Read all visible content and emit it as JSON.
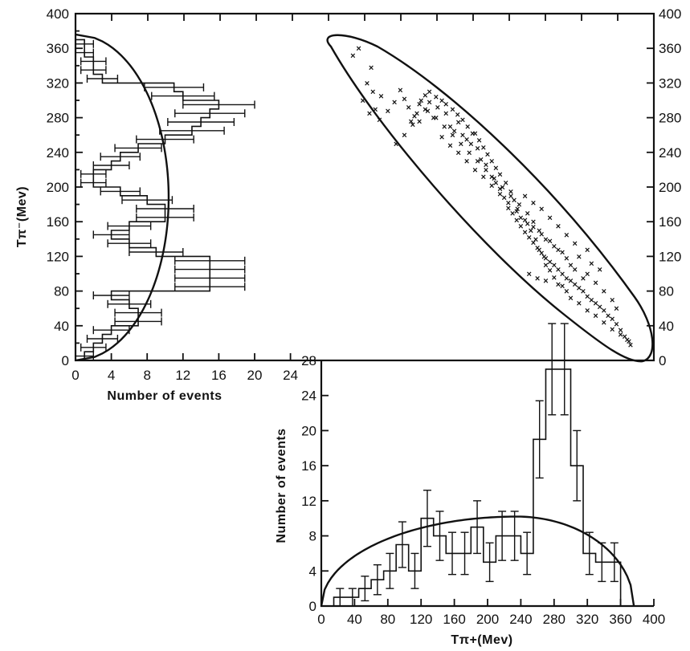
{
  "chart_data": [
    {
      "panel": "scatter",
      "type": "scatter",
      "ylabel": "Tπ⁻(Mev)",
      "xlim": [
        0,
        400
      ],
      "ylim": [
        0,
        400
      ],
      "y_ticks": [
        "0",
        "40",
        "80",
        "120",
        "160",
        "200",
        "240",
        "280",
        "320",
        "360",
        "400"
      ],
      "marker": "x",
      "points": [
        [
          45,
          360
        ],
        [
          38,
          352
        ],
        [
          60,
          338
        ],
        [
          55,
          320
        ],
        [
          62,
          310
        ],
        [
          72,
          305
        ],
        [
          50,
          300
        ],
        [
          65,
          290
        ],
        [
          58,
          285
        ],
        [
          70,
          278
        ],
        [
          80,
          288
        ],
        [
          88,
          298
        ],
        [
          95,
          312
        ],
        [
          100,
          302
        ],
        [
          105,
          292
        ],
        [
          115,
          285
        ],
        [
          110,
          272
        ],
        [
          120,
          300
        ],
        [
          125,
          290
        ],
        [
          130,
          310
        ],
        [
          135,
          280
        ],
        [
          140,
          292
        ],
        [
          150,
          285
        ],
        [
          155,
          270
        ],
        [
          160,
          265
        ],
        [
          165,
          275
        ],
        [
          170,
          260
        ],
        [
          175,
          255
        ],
        [
          180,
          250
        ],
        [
          185,
          262
        ],
        [
          188,
          245
        ],
        [
          192,
          232
        ],
        [
          198,
          226
        ],
        [
          205,
          212
        ],
        [
          210,
          205
        ],
        [
          215,
          198
        ],
        [
          220,
          188
        ],
        [
          225,
          176
        ],
        [
          230,
          170
        ],
        [
          235,
          162
        ],
        [
          240,
          155
        ],
        [
          245,
          148
        ],
        [
          250,
          142
        ],
        [
          255,
          136
        ],
        [
          260,
          130
        ],
        [
          265,
          124
        ],
        [
          270,
          118
        ],
        [
          275,
          114
        ],
        [
          280,
          110
        ],
        [
          285,
          105
        ],
        [
          290,
          100
        ],
        [
          295,
          95
        ],
        [
          300,
          92
        ],
        [
          305,
          88
        ],
        [
          310,
          84
        ],
        [
          315,
          80
        ],
        [
          320,
          74
        ],
        [
          325,
          70
        ],
        [
          330,
          66
        ],
        [
          335,
          62
        ],
        [
          340,
          58
        ],
        [
          345,
          52
        ],
        [
          350,
          48
        ],
        [
          355,
          42
        ],
        [
          360,
          35
        ],
        [
          365,
          28
        ],
        [
          370,
          22
        ],
        [
          372,
          18
        ],
        [
          368,
          24
        ],
        [
          360,
          30
        ],
        [
          350,
          36
        ],
        [
          340,
          44
        ],
        [
          330,
          52
        ],
        [
          320,
          58
        ],
        [
          310,
          66
        ],
        [
          300,
          72
        ],
        [
          295,
          80
        ],
        [
          290,
          86
        ],
        [
          280,
          96
        ],
        [
          275,
          104
        ],
        [
          270,
          110
        ],
        [
          268,
          120
        ],
        [
          262,
          128
        ],
        [
          258,
          140
        ],
        [
          252,
          150
        ],
        [
          248,
          158
        ],
        [
          240,
          165
        ],
        [
          236,
          175
        ],
        [
          232,
          185
        ],
        [
          228,
          195
        ],
        [
          222,
          205
        ],
        [
          215,
          215
        ],
        [
          210,
          222
        ],
        [
          205,
          230
        ],
        [
          200,
          238
        ],
        [
          195,
          246
        ],
        [
          190,
          254
        ],
        [
          182,
          262
        ],
        [
          176,
          270
        ],
        [
          170,
          278
        ],
        [
          164,
          284
        ],
        [
          158,
          290
        ],
        [
          150,
          296
        ],
        [
          145,
          300
        ],
        [
          138,
          304
        ],
        [
          130,
          298
        ],
        [
          125,
          306
        ],
        [
          118,
          296
        ],
        [
          112,
          282
        ],
        [
          108,
          276
        ],
        [
          250,
          100
        ],
        [
          260,
          95
        ],
        [
          270,
          92
        ],
        [
          285,
          88
        ],
        [
          300,
          110
        ],
        [
          310,
          120
        ],
        [
          320,
          128
        ],
        [
          305,
          135
        ],
        [
          295,
          145
        ],
        [
          285,
          155
        ],
        [
          275,
          165
        ],
        [
          265,
          175
        ],
        [
          255,
          182
        ],
        [
          245,
          190
        ],
        [
          320,
          100
        ],
        [
          330,
          90
        ],
        [
          340,
          80
        ],
        [
          350,
          70
        ],
        [
          355,
          60
        ],
        [
          290,
          125
        ],
        [
          280,
          132
        ],
        [
          270,
          140
        ],
        [
          262,
          150
        ],
        [
          255,
          160
        ],
        [
          248,
          170
        ],
        [
          238,
          180
        ],
        [
          228,
          190
        ],
        [
          218,
          200
        ],
        [
          208,
          210
        ],
        [
          198,
          220
        ],
        [
          188,
          230
        ],
        [
          178,
          240
        ],
        [
          168,
          250
        ],
        [
          158,
          260
        ],
        [
          148,
          270
        ],
        [
          138,
          280
        ],
        [
          128,
          288
        ],
        [
          118,
          276
        ],
        [
          100,
          260
        ],
        [
          90,
          250
        ],
        [
          325,
          112
        ],
        [
          335,
          105
        ],
        [
          315,
          95
        ],
        [
          305,
          105
        ],
        [
          295,
          118
        ],
        [
          285,
          128
        ],
        [
          275,
          138
        ],
        [
          265,
          146
        ],
        [
          255,
          154
        ],
        [
          245,
          162
        ],
        [
          235,
          172
        ],
        [
          225,
          182
        ],
        [
          215,
          192
        ],
        [
          205,
          202
        ],
        [
          195,
          212
        ],
        [
          185,
          220
        ],
        [
          175,
          230
        ],
        [
          165,
          240
        ],
        [
          155,
          248
        ],
        [
          145,
          258
        ]
      ]
    },
    {
      "panel": "left-histogram",
      "type": "bar",
      "orientation": "horizontal",
      "xlabel": "Number of events",
      "x_ticks": [
        "0",
        "4",
        "8",
        "12",
        "16",
        "20",
        "24"
      ],
      "xlim": [
        0,
        26
      ],
      "bin_width_mev": 10,
      "bins_lower_mev": [
        0,
        10,
        20,
        30,
        40,
        50,
        60,
        70,
        80,
        90,
        100,
        110,
        120,
        130,
        140,
        150,
        160,
        170,
        180,
        190,
        200,
        210,
        220,
        230,
        240,
        250,
        260,
        270,
        280,
        290,
        300,
        310,
        320,
        330,
        340,
        350,
        360,
        370
      ],
      "counts": [
        1,
        2,
        3,
        4,
        7,
        7,
        6,
        4,
        15,
        15,
        15,
        15,
        9,
        6,
        4,
        6,
        10,
        10,
        8,
        5,
        2,
        2,
        4,
        5,
        7,
        10,
        13,
        14,
        15,
        16,
        12,
        11,
        3,
        2,
        2,
        1,
        1,
        0
      ],
      "errors": [
        1,
        1.4,
        1.7,
        2,
        2.6,
        2.6,
        2.4,
        2,
        3.9,
        3.9,
        3.9,
        3.9,
        3,
        2.4,
        2,
        2.4,
        3.2,
        3.2,
        2.8,
        2.2,
        1.4,
        1.4,
        2,
        2.2,
        2.6,
        3.2,
        3.6,
        3.7,
        3.9,
        4,
        3.5,
        3.3,
        1.7,
        1.4,
        1.4,
        1,
        1,
        0
      ],
      "curve": "phase-space"
    },
    {
      "panel": "bottom-histogram",
      "type": "bar",
      "xlabel": "Tπ+(Mev)",
      "ylabel": "Number of events",
      "x_ticks": [
        "0",
        "40",
        "80",
        "120",
        "160",
        "200",
        "240",
        "280",
        "320",
        "360",
        "400"
      ],
      "y_ticks": [
        "0",
        "4",
        "8",
        "12",
        "16",
        "20",
        "24",
        "28"
      ],
      "xlim": [
        0,
        400
      ],
      "ylim": [
        0,
        28
      ],
      "bin_width_mev": 15,
      "bins_lower_mev": [
        15,
        30,
        45,
        60,
        75,
        90,
        105,
        120,
        135,
        150,
        165,
        180,
        195,
        210,
        225,
        240,
        255,
        270,
        285,
        300,
        315,
        330,
        345,
        360
      ],
      "counts": [
        1,
        1,
        2,
        3,
        4,
        7,
        4,
        10,
        8,
        6,
        6,
        9,
        5,
        8,
        8,
        6,
        19,
        27,
        27,
        16,
        6,
        5,
        5,
        0
      ],
      "errors": [
        1,
        1,
        1.4,
        1.7,
        2,
        2.6,
        2,
        3.2,
        2.8,
        2.4,
        2.4,
        3,
        2.2,
        2.8,
        2.8,
        2.4,
        4.4,
        5.2,
        5.2,
        4,
        2.4,
        2.2,
        2.2,
        0
      ],
      "curve": "phase-space"
    }
  ]
}
